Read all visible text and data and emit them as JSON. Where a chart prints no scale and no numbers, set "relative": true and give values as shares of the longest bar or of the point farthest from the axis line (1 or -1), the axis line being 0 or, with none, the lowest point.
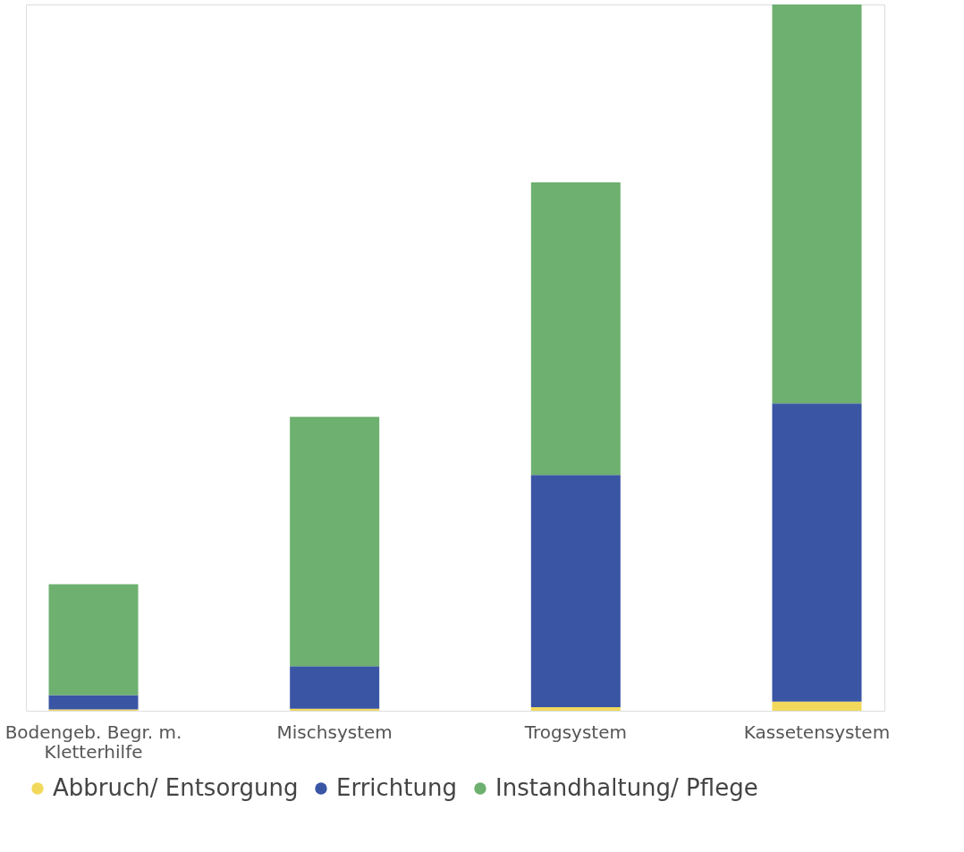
{
  "chart_data": {
    "type": "bar",
    "stacked": true,
    "relative": true,
    "categories": [
      "Bodengeb. Begr. m. Kletterhilfe",
      "Mischsystem",
      "Trogsystem",
      "Kassetensystem"
    ],
    "series": [
      {
        "name": "Abbruch/ Entsorgung",
        "color": "#f2d95c",
        "values": [
          0.002,
          0.003,
          0.005,
          0.013
        ]
      },
      {
        "name": "Errichtung",
        "color": "#3a55a4",
        "values": [
          0.02,
          0.06,
          0.329,
          0.422
        ]
      },
      {
        "name": "Instandhaltung/ Pflege",
        "color": "#6db06f",
        "values": [
          0.157,
          0.353,
          0.414,
          0.565
        ]
      }
    ],
    "legend": "bottom",
    "grid": false
  }
}
